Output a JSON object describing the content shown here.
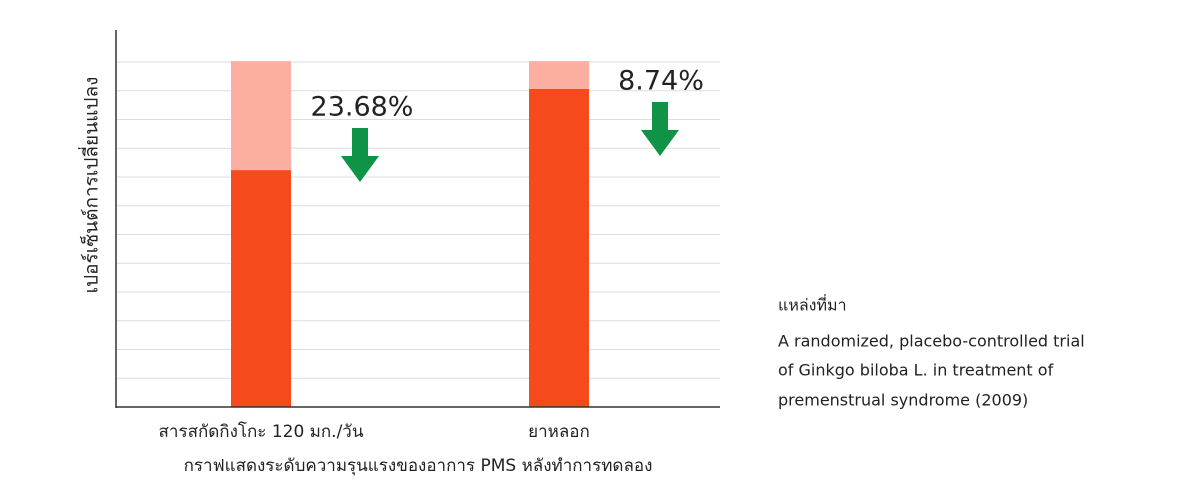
{
  "chart_data": {
    "type": "bar",
    "y_label": "เปอร์เซ็นต์การเปลี่ยนแปลง",
    "x_label": "กราฟแสดงระดับความรุนแรงของอาการ PMS หลังทำการทดลอง",
    "categories": [
      "สารสกัดกิงโกะ 120 มก./วัน",
      "ยาหลอก"
    ],
    "series": [
      {
        "color": "#f74a1c",
        "values": [
          68.5,
          92
        ]
      },
      {
        "color": "#fcaea0",
        "values": [
          31.5,
          8
        ]
      }
    ],
    "annotations": [
      "23.68%",
      "8.74%"
    ],
    "arrow_color": "#0e9347",
    "ylim": [
      0,
      109
    ],
    "grid": true
  },
  "source": {
    "title": "แหล่งที่มา",
    "lines": [
      "A randomized, placebo-controlled trial",
      "of Ginkgo biloba L. in treatment of",
      "premenstrual syndrome (2009)"
    ]
  }
}
